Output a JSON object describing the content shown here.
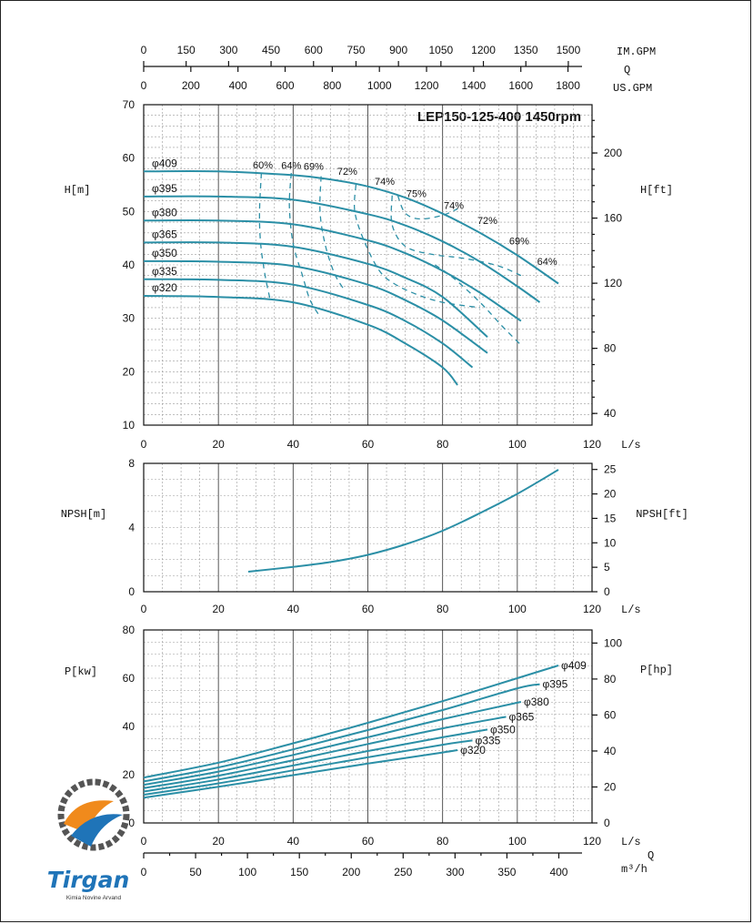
{
  "colors": {
    "curve": "#2b8fa6",
    "logo_orange": "#f08a1c",
    "logo_blue": "#1f74b8",
    "logo_gear": "#555555"
  },
  "chart_data": [
    {
      "type": "line",
      "title": "LEP150-125-400 1450rpm",
      "xlabel": "L/s",
      "ylabel": "H[m]",
      "ylabel_right": "H[ft]",
      "xlim": [
        0,
        120
      ],
      "ylim": [
        10,
        70
      ],
      "x_ticks": [
        "0",
        "20",
        "40",
        "60",
        "80",
        "100",
        "120"
      ],
      "y_ticks": [
        "10",
        "20",
        "30",
        "40",
        "50",
        "60",
        "70"
      ],
      "y_right_ticks": [
        "40",
        "80",
        "120",
        "160",
        "200"
      ],
      "top_axes": [
        {
          "label": "IM.GPM",
          "ticks": [
            "0",
            "150",
            "300",
            "450",
            "600",
            "750",
            "900",
            "1050",
            "1200",
            "1350",
            "1500"
          ]
        },
        {
          "label": "Q",
          "ticks": []
        },
        {
          "label": "US.GPM",
          "ticks": [
            "0",
            "200",
            "400",
            "600",
            "800",
            "1000",
            "1200",
            "1400",
            "1600",
            "1800"
          ]
        }
      ],
      "series": [
        {
          "name": "φ409",
          "x": [
            0,
            20,
            40,
            50,
            60,
            70,
            80,
            90,
            100,
            111
          ],
          "values": [
            57.5,
            57.5,
            56.8,
            56,
            54.7,
            52.6,
            49.6,
            46,
            41.8,
            36.5
          ]
        },
        {
          "name": "φ395",
          "x": [
            0,
            20,
            40,
            60,
            70,
            80,
            90,
            100,
            106
          ],
          "values": [
            52.8,
            52.8,
            52.2,
            49.5,
            47.4,
            44.4,
            40.6,
            36,
            33
          ]
        },
        {
          "name": "φ380",
          "x": [
            0,
            20,
            40,
            60,
            70,
            80,
            90,
            101
          ],
          "values": [
            48.3,
            48.3,
            47.6,
            44.6,
            42.2,
            38.9,
            34.8,
            29.5
          ]
        },
        {
          "name": "φ365",
          "x": [
            0,
            20,
            40,
            60,
            70,
            80,
            92
          ],
          "values": [
            44.2,
            44.2,
            43.4,
            40.2,
            37.6,
            34,
            26.5
          ]
        },
        {
          "name": "φ350",
          "x": [
            0,
            20,
            40,
            60,
            70,
            80,
            92
          ],
          "values": [
            40.7,
            40.6,
            39.8,
            36.3,
            33.4,
            29.6,
            23.5
          ]
        },
        {
          "name": "φ335",
          "x": [
            0,
            20,
            40,
            60,
            70,
            80,
            88
          ],
          "values": [
            37.3,
            37.2,
            36.3,
            32.5,
            29.5,
            25.3,
            20.8
          ]
        },
        {
          "name": "φ320",
          "x": [
            0,
            20,
            40,
            60,
            70,
            80,
            84
          ],
          "values": [
            34.2,
            34.0,
            33.0,
            28.8,
            25.3,
            20.8,
            17.5
          ]
        }
      ],
      "efficiency_labels": [
        "60%",
        "64%",
        "69%",
        "72%",
        "74%",
        "75%",
        "74%",
        "72%",
        "69%",
        "64%"
      ],
      "annotations": [
        "φ409",
        "φ395",
        "φ380",
        "φ365",
        "φ350",
        "φ335",
        "φ320"
      ]
    },
    {
      "type": "line",
      "xlabel": "L/s",
      "ylabel": "NPSH[m]",
      "ylabel_right": "NPSH[ft]",
      "xlim": [
        0,
        120
      ],
      "ylim": [
        0,
        8
      ],
      "x_ticks": [
        "0",
        "20",
        "40",
        "60",
        "80",
        "100",
        "120"
      ],
      "y_ticks": [
        "0",
        "4",
        "8"
      ],
      "y_right_ticks": [
        "0",
        "5",
        "10",
        "15",
        "20",
        "25"
      ],
      "series": [
        {
          "name": "",
          "x": [
            28,
            40,
            50,
            60,
            70,
            80,
            90,
            100,
            111
          ],
          "values": [
            1.25,
            1.55,
            1.85,
            2.3,
            2.95,
            3.8,
            4.9,
            6.1,
            7.6
          ]
        }
      ]
    },
    {
      "type": "line",
      "xlabel": "L/s",
      "ylabel": "P[kw]",
      "ylabel_right": "P[hp]",
      "xlim": [
        0,
        120
      ],
      "ylim": [
        0,
        80
      ],
      "x_ticks": [
        "0",
        "20",
        "40",
        "60",
        "80",
        "100",
        "120"
      ],
      "y_ticks": [
        "0",
        "20",
        "40",
        "60",
        "80"
      ],
      "y_right_ticks": [
        "0",
        "20",
        "40",
        "60",
        "80",
        "100"
      ],
      "bottom_axis": {
        "label_q": "Q",
        "label": "m³/h",
        "ticks": [
          "0",
          "50",
          "100",
          "150",
          "200",
          "250",
          "300",
          "350",
          "400"
        ]
      },
      "series": [
        {
          "name": "φ409",
          "x": [
            0,
            20,
            40,
            60,
            80,
            100,
            111
          ],
          "values": [
            18.8,
            25,
            33,
            41.5,
            50.5,
            60,
            65.3
          ]
        },
        {
          "name": "φ395",
          "x": [
            0,
            20,
            40,
            60,
            80,
            100,
            106
          ],
          "values": [
            17.2,
            23,
            30.5,
            38.5,
            46.8,
            55.8,
            57.5
          ]
        },
        {
          "name": "φ380",
          "x": [
            0,
            20,
            40,
            60,
            80,
            101
          ],
          "values": [
            15.8,
            21.3,
            28.2,
            35.5,
            43,
            50.2
          ]
        },
        {
          "name": "φ365",
          "x": [
            0,
            20,
            40,
            60,
            80,
            97
          ],
          "values": [
            14.4,
            19.6,
            26,
            32.7,
            39.2,
            44
          ]
        },
        {
          "name": "φ350",
          "x": [
            0,
            20,
            40,
            60,
            80,
            92
          ],
          "values": [
            13.0,
            18,
            23.8,
            29.8,
            35.5,
            38.7
          ]
        },
        {
          "name": "φ335",
          "x": [
            0,
            20,
            40,
            60,
            80,
            88
          ],
          "values": [
            11.7,
            16.4,
            21.8,
            27.2,
            32.4,
            34.2
          ]
        },
        {
          "name": "φ320",
          "x": [
            0,
            20,
            40,
            60,
            80,
            84
          ],
          "values": [
            10.5,
            15,
            19.8,
            24.6,
            29.2,
            30.2
          ]
        }
      ]
    }
  ],
  "logo": {
    "brand": "Tirgan",
    "tagline": "Kimia Novine Arvand"
  }
}
